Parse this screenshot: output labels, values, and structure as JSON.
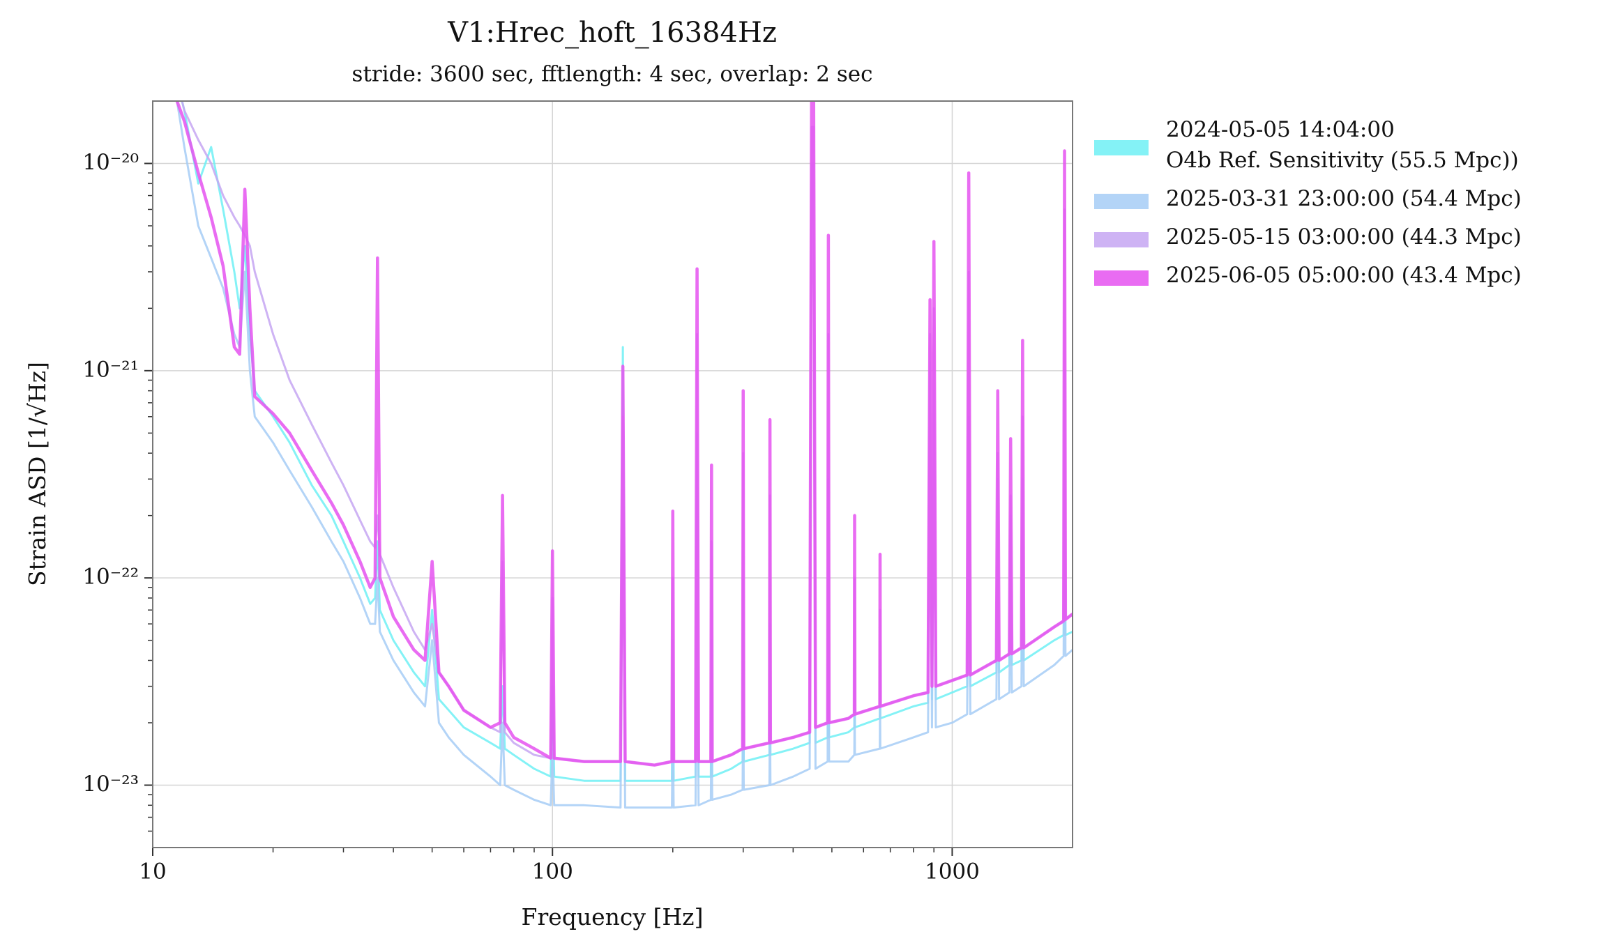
{
  "chart_data": {
    "type": "line",
    "title": "V1:Hrec_hoft_16384Hz",
    "subtitle": "stride: 3600 sec, fftlength: 4 sec, overlap: 2 sec",
    "xlabel": "Frequency [Hz]",
    "ylabel": "Strain ASD [1/√Hz]",
    "xscale": "log",
    "yscale": "log",
    "grid": true,
    "legend": "outside-right",
    "xlim": [
      10,
      2000
    ],
    "ylim": [
      5e-24,
      2e-20
    ],
    "xticks": [
      10,
      100,
      1000
    ],
    "xminorticks": [
      20,
      30,
      40,
      50,
      60,
      70,
      80,
      90,
      200,
      300,
      400,
      500,
      600,
      700,
      800,
      900
    ],
    "yticks": [
      {
        "value": 1e-23,
        "label": "10⁻²³"
      },
      {
        "value": 1e-22,
        "label": "10⁻²²"
      },
      {
        "value": 1e-21,
        "label": "10⁻²¹"
      },
      {
        "value": 1e-20,
        "label": "10⁻²⁰"
      }
    ],
    "yminorticks": [
      6e-24,
      7e-24,
      8e-24,
      9e-24,
      2e-23,
      3e-23,
      4e-23,
      5e-23,
      6e-23,
      7e-23,
      8e-23,
      9e-23,
      2e-22,
      3e-22,
      4e-22,
      5e-22,
      6e-22,
      7e-22,
      8e-22,
      9e-22,
      2e-21,
      3e-21,
      4e-21,
      5e-21,
      6e-21,
      7e-21,
      8e-21,
      9e-21
    ],
    "x": [
      11.5,
      12,
      13,
      14,
      15,
      16,
      16.5,
      17,
      17.5,
      18,
      20,
      22,
      25,
      28,
      30,
      33,
      35,
      36,
      36.5,
      37,
      40,
      45,
      48,
      50,
      52,
      55,
      60,
      70,
      74,
      75,
      76,
      80,
      90,
      99,
      100,
      101,
      120,
      148,
      150,
      152,
      180,
      199,
      200,
      201,
      228,
      230,
      232,
      249,
      250,
      251,
      280,
      299,
      300,
      301,
      349,
      350,
      351,
      400,
      440,
      445,
      450,
      455,
      488,
      490,
      492,
      550,
      569,
      570,
      571,
      659,
      660,
      661,
      800,
      870,
      880,
      890,
      900,
      910,
      1000,
      1090,
      1100,
      1110,
      1290,
      1300,
      1310,
      1390,
      1400,
      1410,
      1490,
      1500,
      1510,
      1800,
      1900,
      1910,
      1920,
      2000
    ],
    "series": [
      {
        "name": "2024-05-05 14:04:00\nO4b Ref. Sensitivity (55.5 Mpc))",
        "color": "#6ff0f5",
        "values": [
          2.5e-20,
          1.8e-20,
          8e-21,
          1.2e-20,
          6e-21,
          3e-21,
          2e-21,
          4e-21,
          1.5e-21,
          8e-22,
          6e-22,
          4.5e-22,
          2.8e-22,
          2e-22,
          1.5e-22,
          1e-22,
          7.5e-23,
          8e-23,
          1.5e-22,
          7e-23,
          5e-23,
          3.5e-23,
          3e-23,
          7e-23,
          2.6e-23,
          2.3e-23,
          1.9e-23,
          1.6e-23,
          1.5e-23,
          3e-23,
          1.5e-23,
          1.4e-23,
          1.2e-23,
          1.1e-23,
          3e-23,
          1.1e-23,
          1.05e-23,
          1.05e-23,
          1.3e-21,
          1.05e-23,
          1.05e-23,
          1.05e-23,
          5e-23,
          1.05e-23,
          1.1e-23,
          5e-22,
          1.1e-23,
          1.1e-23,
          5e-23,
          1.1e-23,
          1.2e-23,
          1.3e-23,
          1e-22,
          1.3e-23,
          1.4e-23,
          6e-23,
          1.4e-23,
          1.5e-23,
          1.6e-23,
          1e-20,
          1e-20,
          1.6e-23,
          1.7e-23,
          3e-22,
          1.7e-23,
          1.8e-23,
          1.9e-23,
          4e-23,
          1.9e-23,
          2.1e-23,
          4e-23,
          2.1e-23,
          2.4e-23,
          2.5e-23,
          1.1e-21,
          2.6e-23,
          8e-22,
          2.6e-23,
          2.8e-23,
          3e-23,
          6e-22,
          3e-23,
          3.5e-23,
          3e-22,
          3.5e-23,
          3.8e-23,
          2e-22,
          3.8e-23,
          4e-23,
          3e-22,
          4e-23,
          5e-23,
          5.3e-23,
          1e-21,
          5.3e-23,
          5.5e-23
        ]
      },
      {
        "name": "2025-03-31 23:00:00 (54.4 Mpc)",
        "color": "#a6ccf6",
        "values": [
          2e-20,
          1.2e-20,
          5e-21,
          3.5e-21,
          2.5e-21,
          1.5e-21,
          1.3e-21,
          3e-21,
          1e-21,
          6e-22,
          4.5e-22,
          3.3e-22,
          2.2e-22,
          1.5e-22,
          1.2e-22,
          8e-23,
          6e-23,
          6e-23,
          1e-22,
          5.5e-23,
          4e-23,
          2.8e-23,
          2.4e-23,
          5e-23,
          2e-23,
          1.7e-23,
          1.4e-23,
          1.1e-23,
          1e-23,
          2e-23,
          1e-23,
          9.5e-24,
          8.5e-24,
          8e-24,
          1.5e-23,
          8e-24,
          8e-24,
          7.8e-24,
          3e-22,
          7.8e-24,
          7.8e-24,
          7.8e-24,
          2e-23,
          7.8e-24,
          8e-24,
          1e-22,
          8e-24,
          8.5e-24,
          2e-23,
          8.5e-24,
          9e-24,
          9.5e-24,
          3e-23,
          9.5e-24,
          1e-23,
          2.5e-23,
          1e-23,
          1.1e-23,
          1.2e-23,
          1e-20,
          8e-21,
          1.2e-23,
          1.3e-23,
          1.5e-22,
          1.3e-23,
          1.3e-23,
          1.4e-23,
          2.5e-23,
          1.4e-23,
          1.5e-23,
          2.5e-23,
          1.5e-23,
          1.7e-23,
          1.8e-23,
          6e-22,
          1.9e-23,
          5e-22,
          1.9e-23,
          2e-23,
          2.2e-23,
          3e-22,
          2.2e-23,
          2.6e-23,
          2e-22,
          2.6e-23,
          2.8e-23,
          1e-22,
          2.8e-23,
          3e-23,
          2e-22,
          3e-23,
          3.8e-23,
          4.2e-23,
          5e-22,
          4.2e-23,
          4.5e-23
        ]
      },
      {
        "name": "2025-05-15 03:00:00 (44.3 Mpc)",
        "color": "#c6a6f2",
        "values": [
          2.5e-20,
          1.8e-20,
          1.3e-20,
          1e-20,
          7e-21,
          5.5e-21,
          5e-21,
          4.5e-21,
          4e-21,
          3e-21,
          1.5e-21,
          9e-22,
          5.5e-22,
          3.6e-22,
          2.8e-22,
          1.9e-22,
          1.5e-22,
          1.4e-22,
          2e-22,
          1.3e-22,
          9e-23,
          5.5e-23,
          4.5e-23,
          6e-23,
          3.5e-23,
          3e-23,
          2.3e-23,
          1.9e-23,
          1.8e-23,
          1.2e-22,
          1.8e-23,
          1.6e-23,
          1.4e-23,
          1.35e-23,
          8e-23,
          1.35e-23,
          1.3e-23,
          1.3e-23,
          6e-22,
          1.3e-23,
          1.25e-23,
          1.3e-23,
          1e-22,
          1.3e-23,
          1.3e-23,
          1.5e-21,
          1.3e-23,
          1.3e-23,
          1.5e-22,
          1.3e-23,
          1.4e-23,
          1.5e-23,
          4e-22,
          1.5e-23,
          1.6e-23,
          2.5e-22,
          1.6e-23,
          1.7e-23,
          1.8e-23,
          1.5e-20,
          1.5e-20,
          1.9e-23,
          2e-23,
          1.5e-21,
          2e-23,
          2.1e-23,
          2.2e-23,
          1e-22,
          2.2e-23,
          2.4e-23,
          7e-23,
          2.4e-23,
          2.7e-23,
          2.8e-23,
          1.5e-21,
          3e-23,
          2e-21,
          3e-23,
          3.2e-23,
          3.4e-23,
          3e-21,
          3.4e-23,
          4e-23,
          4e-22,
          4e-23,
          4.3e-23,
          2.5e-22,
          4.3e-23,
          4.6e-23,
          6e-22,
          4.6e-23,
          5.8e-23,
          6.2e-23,
          6e-21,
          6.3e-23,
          6.7e-23
        ]
      },
      {
        "name": "2025-06-05 05:00:00 (43.4 Mpc)",
        "color": "#e552f0",
        "values": [
          2e-20,
          1.6e-20,
          9e-21,
          5.5e-21,
          3.2e-21,
          1.3e-21,
          1.2e-21,
          7.5e-21,
          2e-21,
          7.5e-22,
          6.2e-22,
          5e-22,
          3.3e-22,
          2.3e-22,
          1.8e-22,
          1.2e-22,
          9e-23,
          1e-22,
          3.5e-21,
          1e-22,
          6.5e-23,
          4.5e-23,
          4e-23,
          1.2e-22,
          3.5e-23,
          3e-23,
          2.3e-23,
          1.9e-23,
          2e-23,
          2.5e-22,
          2e-23,
          1.7e-23,
          1.5e-23,
          1.35e-23,
          1.35e-22,
          1.35e-23,
          1.3e-23,
          1.3e-23,
          1.05e-21,
          1.3e-23,
          1.25e-23,
          1.3e-23,
          2.1e-22,
          1.3e-23,
          1.3e-23,
          3.1e-21,
          1.3e-23,
          1.3e-23,
          3.5e-22,
          1.3e-23,
          1.4e-23,
          1.5e-23,
          8e-22,
          1.5e-23,
          1.6e-23,
          5.8e-22,
          1.6e-23,
          1.7e-23,
          1.8e-23,
          2.5e-20,
          2.5e-20,
          1.9e-23,
          2e-23,
          4.5e-21,
          2e-23,
          2.1e-23,
          2.2e-23,
          2e-22,
          2.2e-23,
          2.4e-23,
          1.3e-22,
          2.4e-23,
          2.7e-23,
          2.8e-23,
          2.2e-21,
          3e-23,
          4.2e-21,
          3e-23,
          3.2e-23,
          3.4e-23,
          9e-21,
          3.4e-23,
          4e-23,
          8e-22,
          4e-23,
          4.3e-23,
          4.7e-22,
          4.3e-23,
          4.6e-23,
          1.4e-21,
          4.6e-23,
          5.8e-23,
          6.2e-23,
          1.15e-20,
          6.3e-23,
          6.7e-23
        ]
      }
    ]
  }
}
